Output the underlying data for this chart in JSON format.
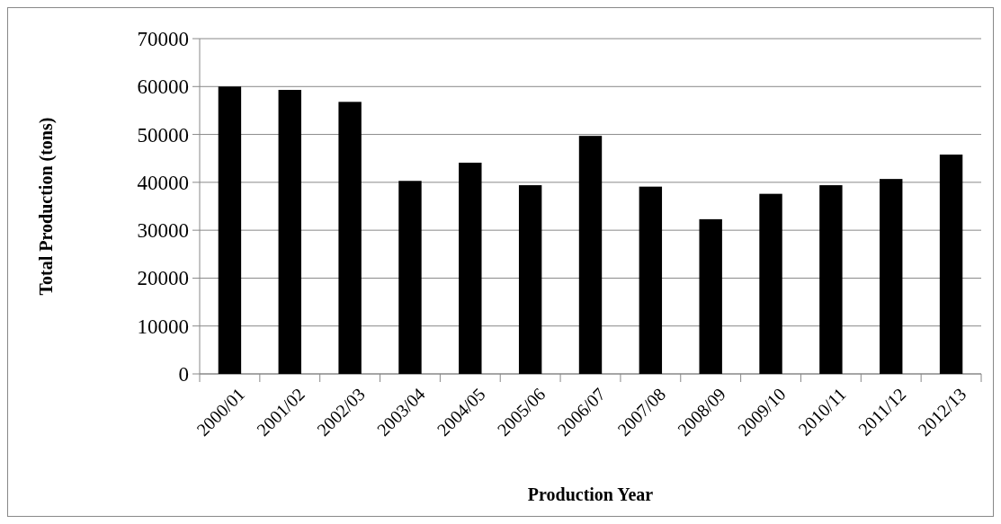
{
  "chart_data": {
    "type": "bar",
    "xlabel": "Production Year",
    "ylabel": "Total Production (tons)",
    "categories": [
      "2000/01",
      "2001/02",
      "2002/03",
      "2003/04",
      "2004/05",
      "2005/06",
      "2006/07",
      "2007/08",
      "2008/09",
      "2009/10",
      "2010/11",
      "2011/12",
      "2012/13"
    ],
    "values": [
      60000,
      59300,
      56800,
      40300,
      44100,
      39400,
      49700,
      39100,
      32300,
      37600,
      39400,
      40700,
      45800
    ],
    "color": "#000000",
    "ylim": [
      0,
      70000
    ],
    "yticks": [
      0,
      10000,
      20000,
      30000,
      40000,
      50000,
      60000,
      70000
    ],
    "grid": "y"
  }
}
